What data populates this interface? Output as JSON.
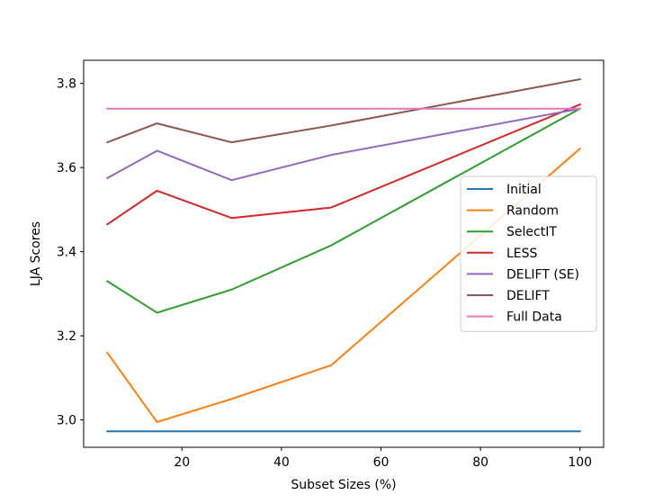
{
  "chart_data": {
    "type": "line",
    "title": "",
    "xlabel": "Subset Sizes (%)",
    "ylabel": "LJA Scores",
    "xlim": [
      0.25,
      104.75
    ],
    "ylim": [
      2.935,
      3.855
    ],
    "xticks": [
      20,
      40,
      60,
      80,
      100
    ],
    "yticks": [
      3.0,
      3.2,
      3.4,
      3.6,
      3.8
    ],
    "xtick_labels": [
      "20",
      "40",
      "60",
      "80",
      "100"
    ],
    "ytick_labels": [
      "3.0",
      "3.2",
      "3.4",
      "3.6",
      "3.8"
    ],
    "grid": false,
    "legend_position": "center-right",
    "x": [
      5,
      15,
      30,
      50,
      100
    ],
    "series": [
      {
        "name": "Initial",
        "color": "#1f77b4",
        "values": [
          2.973,
          2.973,
          2.973,
          2.973,
          2.973
        ]
      },
      {
        "name": "Random",
        "color": "#ff7f0e",
        "values": [
          3.16,
          2.995,
          3.05,
          3.13,
          3.645
        ]
      },
      {
        "name": "SelectIT",
        "color": "#2ca02c",
        "values": [
          3.33,
          3.255,
          3.31,
          3.415,
          3.74
        ]
      },
      {
        "name": "LESS",
        "color": "#d62728",
        "values": [
          3.465,
          3.545,
          3.48,
          3.505,
          3.75
        ]
      },
      {
        "name": "DELIFT (SE)",
        "color": "#9467bd",
        "values": [
          3.575,
          3.64,
          3.57,
          3.63,
          3.74
        ]
      },
      {
        "name": "DELIFT",
        "color": "#8c564b",
        "values": [
          3.66,
          3.705,
          3.66,
          3.7,
          3.81
        ]
      },
      {
        "name": "Full Data",
        "color": "#e377c2",
        "values": [
          3.74,
          3.74,
          3.74,
          3.74,
          3.74
        ]
      }
    ]
  }
}
